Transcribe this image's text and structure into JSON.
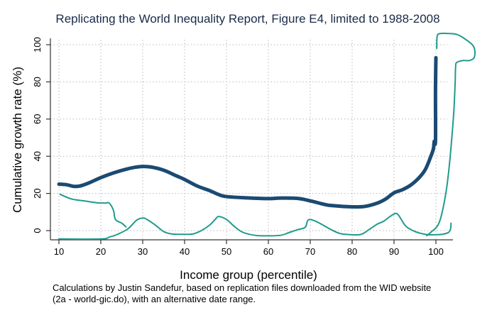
{
  "chart_data": {
    "type": "line",
    "title": "Replicating the World Inequality Report, Figure E4, limited to 1988-2008",
    "xlabel": "Income group (percentile)",
    "ylabel": "Cumulative growth rate (%)",
    "note_lines": [
      "Calculations by Justin Sandefur, based on replication files downloaded from the WID website",
      "(2a - world-gic.do), with an alternative date range."
    ],
    "xlim": [
      10,
      100
    ],
    "ylim": [
      0,
      100
    ],
    "x_ticks": [
      10,
      20,
      30,
      40,
      50,
      60,
      70,
      80,
      90,
      100
    ],
    "x_tick_labels": [
      "10",
      "20",
      "30",
      "40",
      "50",
      "60",
      "70",
      "80",
      "90",
      "100"
    ],
    "y_ticks": [
      0,
      20,
      40,
      60,
      80,
      100
    ],
    "y_tick_labels": [
      "0",
      "20",
      "40",
      "60",
      "80",
      "100"
    ],
    "grid": true,
    "series": [
      {
        "name": "growth-incidence-curve",
        "color": "#1b4a72",
        "style": "thick",
        "points": [
          [
            10,
            25
          ],
          [
            12,
            24.6
          ],
          [
            13.5,
            23.8
          ],
          [
            15,
            24
          ],
          [
            17,
            25.5
          ],
          [
            20,
            28.5
          ],
          [
            23,
            31
          ],
          [
            26,
            33
          ],
          [
            28,
            34
          ],
          [
            30,
            34.5
          ],
          [
            32,
            34.2
          ],
          [
            35,
            32.5
          ],
          [
            38,
            29.5
          ],
          [
            40,
            27.5
          ],
          [
            43,
            24
          ],
          [
            46,
            21.5
          ],
          [
            48,
            19.5
          ],
          [
            50,
            18.3
          ],
          [
            55,
            17.6
          ],
          [
            60,
            17.2
          ],
          [
            63,
            17.5
          ],
          [
            67,
            17.3
          ],
          [
            70,
            16
          ],
          [
            73,
            14.3
          ],
          [
            75,
            13.5
          ],
          [
            80,
            12.8
          ],
          [
            83,
            13
          ],
          [
            86,
            14.8
          ],
          [
            88,
            17
          ],
          [
            90,
            20.3
          ],
          [
            92,
            22
          ],
          [
            94,
            24.5
          ],
          [
            96,
            28.5
          ],
          [
            97.5,
            33
          ],
          [
            98.8,
            40
          ],
          [
            99.4,
            44
          ],
          [
            99.6,
            48
          ],
          [
            99.9,
            48.5
          ],
          [
            99.9,
            75
          ],
          [
            100,
            93
          ]
        ]
      },
      {
        "name": "growth-incidence-curve-segment-upper-left",
        "color": "#1f9b8c",
        "style": "thin",
        "points": [
          [
            10.3,
            19.5
          ],
          [
            13,
            17
          ],
          [
            16,
            16
          ],
          [
            19,
            15
          ],
          [
            21,
            14.8
          ],
          [
            22,
            14.8
          ],
          [
            23,
            11
          ],
          [
            23.5,
            6
          ],
          [
            25,
            4
          ],
          [
            26,
            2
          ]
        ]
      },
      {
        "name": "growth-incidence-curve-segment-lower",
        "color": "#1f9b8c",
        "style": "thin",
        "points": [
          [
            10,
            -4.5
          ],
          [
            20,
            -4.5
          ],
          [
            22,
            -3.5
          ],
          [
            24,
            -2
          ],
          [
            26.5,
            1
          ],
          [
            28.5,
            5.5
          ],
          [
            30,
            6.8
          ],
          [
            31,
            6
          ],
          [
            33,
            3
          ],
          [
            35,
            -0.5
          ],
          [
            37,
            -1.8
          ],
          [
            40,
            -2
          ],
          [
            42,
            -1.8
          ],
          [
            44,
            0
          ],
          [
            46,
            3
          ],
          [
            47.5,
            6.5
          ],
          [
            48.2,
            7.6
          ],
          [
            50,
            6
          ],
          [
            52,
            2
          ],
          [
            54,
            -1
          ],
          [
            57,
            -2.6
          ],
          [
            60,
            -2.8
          ],
          [
            63,
            -2.5
          ],
          [
            65,
            -1
          ],
          [
            67,
            0.5
          ],
          [
            68.8,
            1.8
          ],
          [
            69.5,
            5.7
          ],
          [
            71,
            5.3
          ],
          [
            73,
            3
          ],
          [
            75,
            0.5
          ],
          [
            77,
            -1.5
          ],
          [
            79,
            -2.1
          ],
          [
            82,
            -2.1
          ],
          [
            84,
            0.5
          ],
          [
            86,
            3.5
          ],
          [
            87.5,
            5
          ],
          [
            89,
            7.5
          ],
          [
            90.3,
            9.2
          ],
          [
            91,
            8.5
          ],
          [
            92,
            5
          ],
          [
            93,
            2
          ],
          [
            95,
            -0.5
          ],
          [
            97,
            -1.8
          ],
          [
            98.5,
            -2.3
          ]
        ]
      },
      {
        "name": "growth-incidence-curve-segment-right-loop",
        "color": "#1f9b8c",
        "style": "thin",
        "points": [
          [
            97.8,
            -2.7
          ],
          [
            99,
            -0.5
          ],
          [
            100.5,
            3
          ],
          [
            101.5,
            10
          ],
          [
            102.5,
            22
          ],
          [
            103.2,
            35
          ],
          [
            103.8,
            50
          ],
          [
            104.3,
            65
          ],
          [
            104.6,
            80
          ],
          [
            104.7,
            88
          ],
          [
            105,
            90.5
          ],
          [
            106.5,
            91.5
          ],
          [
            108,
            91.5
          ],
          [
            109.2,
            93.5
          ],
          [
            109,
            99
          ],
          [
            107,
            103
          ],
          [
            105,
            105.5
          ],
          [
            103,
            106
          ],
          [
            101,
            106
          ],
          [
            100.3,
            104.5
          ],
          [
            100.2,
            98
          ]
        ]
      },
      {
        "name": "growth-incidence-curve-segment-bottom-tail",
        "color": "#1f9b8c",
        "style": "thin",
        "points": [
          [
            98.5,
            -2.3
          ],
          [
            100,
            -2.2
          ],
          [
            101.5,
            -2
          ],
          [
            103,
            -1
          ],
          [
            103.5,
            1
          ],
          [
            103.6,
            4
          ]
        ]
      }
    ]
  }
}
